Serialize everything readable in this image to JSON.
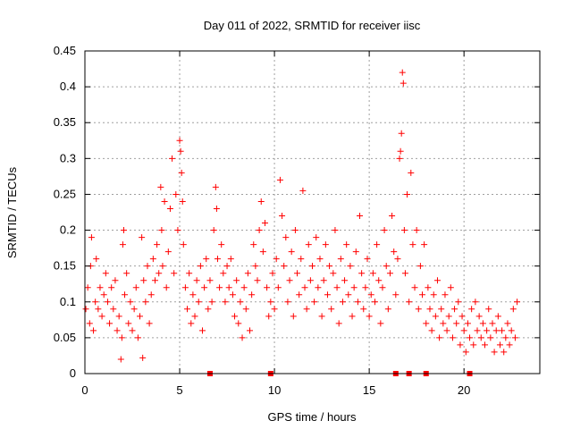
{
  "chart_data": {
    "type": "scatter",
    "title": "Day 011 of 2022, SRMTID for receiver iisc",
    "xlabel": "GPS time / hours",
    "ylabel": "SRMTID / TECUs",
    "xlim": [
      0,
      24
    ],
    "ylim": [
      0,
      0.45
    ],
    "xticks": [
      0,
      5,
      10,
      15,
      20
    ],
    "xtick_labels": [
      "0",
      "5",
      "10",
      "15",
      "20"
    ],
    "yticks": [
      0,
      0.05,
      0.1,
      0.15,
      0.2,
      0.25,
      0.3,
      0.35,
      0.4,
      0.45
    ],
    "ytick_labels": [
      "0",
      "0.05",
      "0.1",
      "0.15",
      "0.2",
      "0.25",
      "0.3",
      "0.35",
      "0.4",
      "0.45"
    ],
    "grid": true,
    "marker": "+",
    "color": "#ff0000",
    "series": [
      {
        "values_xy": [
          [
            0.05,
            0.09
          ],
          [
            0.15,
            0.12
          ],
          [
            0.25,
            0.07
          ],
          [
            0.3,
            0.15
          ],
          [
            0.35,
            0.19
          ],
          [
            0.45,
            0.06
          ],
          [
            0.55,
            0.1
          ],
          [
            0.6,
            0.16
          ],
          [
            0.7,
            0.09
          ],
          [
            0.8,
            0.12
          ],
          [
            0.9,
            0.08
          ],
          [
            1.0,
            0.11
          ],
          [
            1.1,
            0.14
          ],
          [
            1.2,
            0.1
          ],
          [
            1.3,
            0.07
          ],
          [
            1.4,
            0.12
          ],
          [
            1.5,
            0.09
          ],
          [
            1.6,
            0.13
          ],
          [
            1.7,
            0.06
          ],
          [
            1.8,
            0.08
          ],
          [
            1.9,
            0.02
          ],
          [
            1.95,
            0.05
          ],
          [
            2.0,
            0.18
          ],
          [
            2.05,
            0.2
          ],
          [
            2.1,
            0.11
          ],
          [
            2.2,
            0.14
          ],
          [
            2.3,
            0.07
          ],
          [
            2.4,
            0.1
          ],
          [
            2.5,
            0.06
          ],
          [
            2.6,
            0.09
          ],
          [
            2.7,
            0.12
          ],
          [
            2.8,
            0.05
          ],
          [
            2.9,
            0.08
          ],
          [
            3.0,
            0.19
          ],
          [
            3.05,
            0.022
          ],
          [
            3.1,
            0.13
          ],
          [
            3.2,
            0.1
          ],
          [
            3.3,
            0.15
          ],
          [
            3.4,
            0.07
          ],
          [
            3.5,
            0.11
          ],
          [
            3.6,
            0.16
          ],
          [
            3.7,
            0.13
          ],
          [
            3.8,
            0.18
          ],
          [
            3.9,
            0.14
          ],
          [
            4.0,
            0.26
          ],
          [
            4.05,
            0.2
          ],
          [
            4.1,
            0.15
          ],
          [
            4.2,
            0.24
          ],
          [
            4.3,
            0.12
          ],
          [
            4.4,
            0.17
          ],
          [
            4.5,
            0.23
          ],
          [
            4.6,
            0.3
          ],
          [
            4.7,
            0.14
          ],
          [
            4.8,
            0.25
          ],
          [
            4.9,
            0.2
          ],
          [
            5.0,
            0.325
          ],
          [
            5.05,
            0.31
          ],
          [
            5.1,
            0.28
          ],
          [
            5.15,
            0.24
          ],
          [
            5.2,
            0.18
          ],
          [
            5.3,
            0.12
          ],
          [
            5.4,
            0.09
          ],
          [
            5.5,
            0.14
          ],
          [
            5.6,
            0.07
          ],
          [
            5.7,
            0.11
          ],
          [
            5.8,
            0.08
          ],
          [
            5.9,
            0.13
          ],
          [
            6.0,
            0.1
          ],
          [
            6.1,
            0.15
          ],
          [
            6.2,
            0.06
          ],
          [
            6.3,
            0.12
          ],
          [
            6.4,
            0.16
          ],
          [
            6.5,
            0.09
          ],
          [
            6.6,
            0.13
          ],
          [
            6.7,
            0.1
          ],
          [
            6.8,
            0.2
          ],
          [
            6.9,
            0.26
          ],
          [
            6.95,
            0.23
          ],
          [
            7.0,
            0.16
          ],
          [
            7.1,
            0.12
          ],
          [
            7.2,
            0.18
          ],
          [
            7.3,
            0.14
          ],
          [
            7.4,
            0.1
          ],
          [
            7.5,
            0.15
          ],
          [
            7.6,
            0.12
          ],
          [
            7.7,
            0.16
          ],
          [
            7.8,
            0.11
          ],
          [
            7.9,
            0.08
          ],
          [
            8.0,
            0.13
          ],
          [
            8.1,
            0.07
          ],
          [
            8.2,
            0.1
          ],
          [
            8.3,
            0.05
          ],
          [
            8.4,
            0.12
          ],
          [
            8.5,
            0.09
          ],
          [
            8.6,
            0.14
          ],
          [
            8.7,
            0.06
          ],
          [
            8.8,
            0.11
          ],
          [
            8.9,
            0.18
          ],
          [
            9.0,
            0.15
          ],
          [
            9.1,
            0.13
          ],
          [
            9.2,
            0.2
          ],
          [
            9.3,
            0.24
          ],
          [
            9.4,
            0.17
          ],
          [
            9.5,
            0.21
          ],
          [
            9.6,
            0.12
          ],
          [
            9.7,
            0.08
          ],
          [
            9.8,
            0.1
          ],
          [
            9.9,
            0.14
          ],
          [
            10.0,
            0.09
          ],
          [
            10.1,
            0.16
          ],
          [
            10.2,
            0.12
          ],
          [
            10.3,
            0.27
          ],
          [
            10.4,
            0.22
          ],
          [
            10.5,
            0.15
          ],
          [
            10.6,
            0.19
          ],
          [
            10.7,
            0.1
          ],
          [
            10.8,
            0.13
          ],
          [
            10.9,
            0.17
          ],
          [
            11.0,
            0.08
          ],
          [
            11.1,
            0.2
          ],
          [
            11.2,
            0.14
          ],
          [
            11.3,
            0.11
          ],
          [
            11.4,
            0.16
          ],
          [
            11.5,
            0.255
          ],
          [
            11.6,
            0.12
          ],
          [
            11.7,
            0.09
          ],
          [
            11.8,
            0.18
          ],
          [
            11.9,
            0.13
          ],
          [
            12.0,
            0.15
          ],
          [
            12.1,
            0.1
          ],
          [
            12.2,
            0.19
          ],
          [
            12.3,
            0.12
          ],
          [
            12.4,
            0.16
          ],
          [
            12.5,
            0.08
          ],
          [
            12.6,
            0.13
          ],
          [
            12.7,
            0.18
          ],
          [
            12.8,
            0.11
          ],
          [
            12.9,
            0.15
          ],
          [
            13.0,
            0.09
          ],
          [
            13.1,
            0.14
          ],
          [
            13.2,
            0.2
          ],
          [
            13.3,
            0.12
          ],
          [
            13.4,
            0.07
          ],
          [
            13.5,
            0.16
          ],
          [
            13.6,
            0.1
          ],
          [
            13.7,
            0.13
          ],
          [
            13.8,
            0.18
          ],
          [
            13.9,
            0.11
          ],
          [
            14.0,
            0.15
          ],
          [
            14.1,
            0.08
          ],
          [
            14.2,
            0.12
          ],
          [
            14.3,
            0.17
          ],
          [
            14.4,
            0.1
          ],
          [
            14.5,
            0.22
          ],
          [
            14.6,
            0.14
          ],
          [
            14.7,
            0.09
          ],
          [
            14.8,
            0.12
          ],
          [
            14.9,
            0.16
          ],
          [
            15.0,
            0.08
          ],
          [
            15.1,
            0.11
          ],
          [
            15.2,
            0.14
          ],
          [
            15.3,
            0.1
          ],
          [
            15.4,
            0.18
          ],
          [
            15.5,
            0.13
          ],
          [
            15.6,
            0.07
          ],
          [
            15.7,
            0.12
          ],
          [
            15.8,
            0.2
          ],
          [
            15.9,
            0.15
          ],
          [
            16.0,
            0.09
          ],
          [
            16.1,
            0.14
          ],
          [
            16.2,
            0.22
          ],
          [
            16.3,
            0.17
          ],
          [
            16.4,
            0.11
          ],
          [
            16.5,
            0.16
          ],
          [
            16.6,
            0.3
          ],
          [
            16.65,
            0.31
          ],
          [
            16.7,
            0.335
          ],
          [
            16.75,
            0.42
          ],
          [
            16.8,
            0.405
          ],
          [
            16.85,
            0.2
          ],
          [
            16.9,
            0.14
          ],
          [
            17.0,
            0.25
          ],
          [
            17.1,
            0.1
          ],
          [
            17.2,
            0.28
          ],
          [
            17.3,
            0.18
          ],
          [
            17.4,
            0.12
          ],
          [
            17.5,
            0.2
          ],
          [
            17.6,
            0.09
          ],
          [
            17.7,
            0.15
          ],
          [
            17.8,
            0.11
          ],
          [
            17.9,
            0.18
          ],
          [
            18.0,
            0.07
          ],
          [
            18.1,
            0.12
          ],
          [
            18.2,
            0.09
          ],
          [
            18.3,
            0.06
          ],
          [
            18.4,
            0.11
          ],
          [
            18.5,
            0.08
          ],
          [
            18.6,
            0.13
          ],
          [
            18.7,
            0.05
          ],
          [
            18.8,
            0.09
          ],
          [
            18.9,
            0.07
          ],
          [
            19.0,
            0.11
          ],
          [
            19.1,
            0.06
          ],
          [
            19.2,
            0.08
          ],
          [
            19.3,
            0.12
          ],
          [
            19.4,
            0.05
          ],
          [
            19.5,
            0.09
          ],
          [
            19.6,
            0.07
          ],
          [
            19.7,
            0.1
          ],
          [
            19.8,
            0.04
          ],
          [
            19.9,
            0.08
          ],
          [
            20.0,
            0.06
          ],
          [
            20.1,
            0.03
          ],
          [
            20.2,
            0.07
          ],
          [
            20.3,
            0.05
          ],
          [
            20.4,
            0.09
          ],
          [
            20.5,
            0.04
          ],
          [
            20.6,
            0.1
          ],
          [
            20.7,
            0.06
          ],
          [
            20.8,
            0.08
          ],
          [
            20.9,
            0.05
          ],
          [
            21.0,
            0.07
          ],
          [
            21.1,
            0.04
          ],
          [
            21.2,
            0.06
          ],
          [
            21.3,
            0.09
          ],
          [
            21.4,
            0.05
          ],
          [
            21.5,
            0.07
          ],
          [
            21.6,
            0.03
          ],
          [
            21.7,
            0.06
          ],
          [
            21.8,
            0.08
          ],
          [
            21.9,
            0.04
          ],
          [
            22.0,
            0.06
          ],
          [
            22.1,
            0.03
          ],
          [
            22.2,
            0.05
          ],
          [
            22.3,
            0.07
          ],
          [
            22.4,
            0.04
          ],
          [
            22.5,
            0.06
          ],
          [
            22.6,
            0.09
          ],
          [
            22.7,
            0.05
          ],
          [
            22.8,
            0.1
          ]
        ]
      }
    ],
    "zero_markers_x": [
      6.6,
      9.8,
      16.4,
      17.1,
      18.0,
      20.3
    ]
  }
}
